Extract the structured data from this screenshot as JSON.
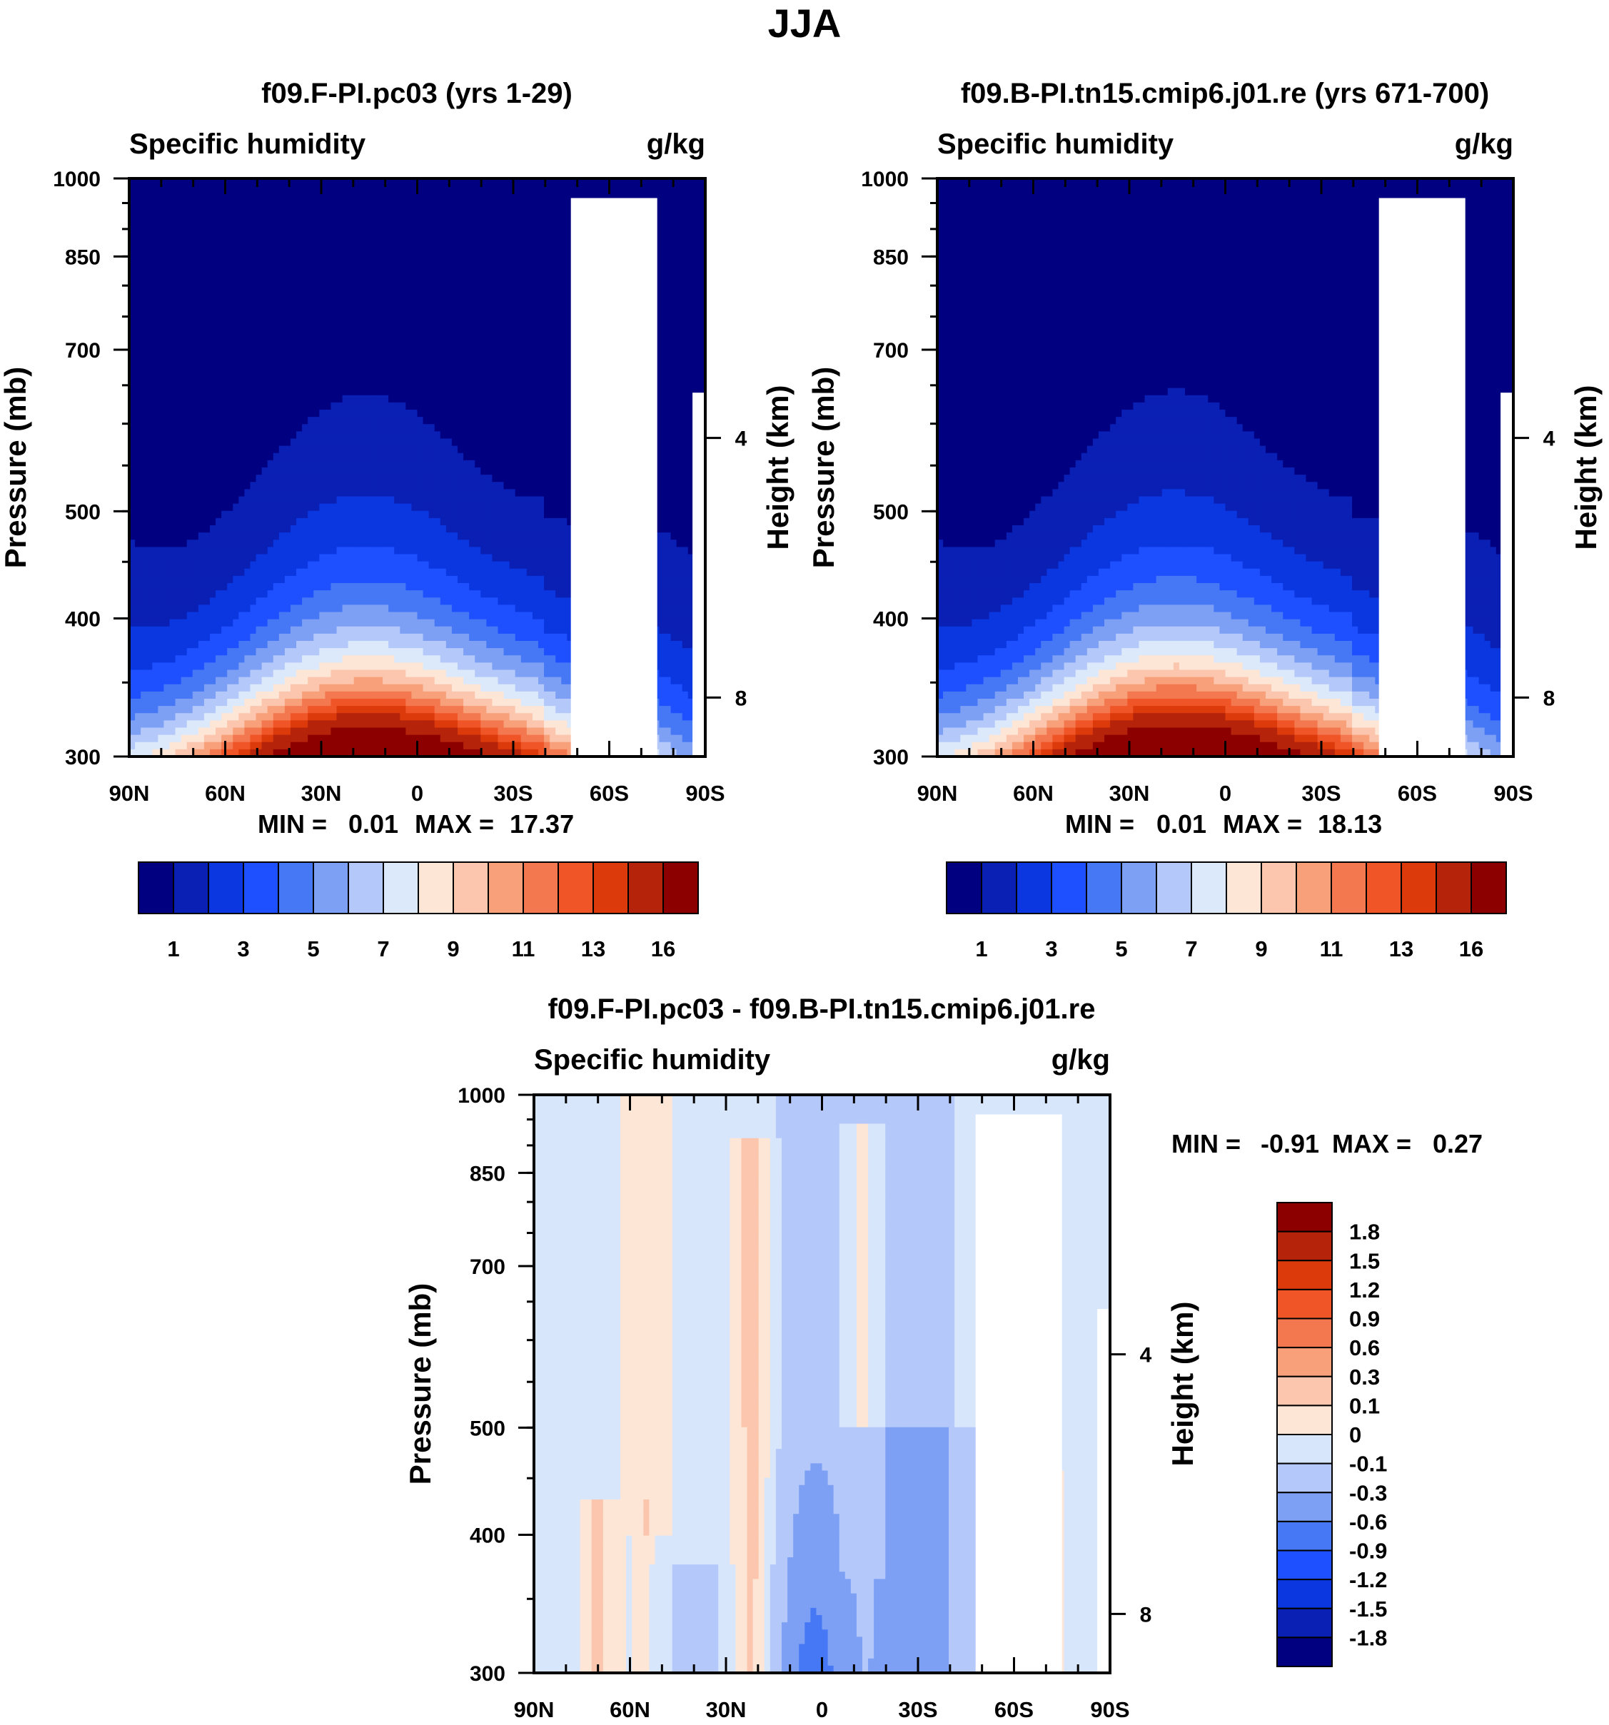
{
  "figure": {
    "title": "JJA"
  },
  "colors": {
    "absolute": [
      "#000080",
      "#0a1fb3",
      "#0a37e0",
      "#1e50ff",
      "#4678f5",
      "#7da0f5",
      "#b4c8fa",
      "#dce9fb",
      "#fde6d6",
      "#fbc6ad",
      "#f7a07a",
      "#f37850",
      "#f05528",
      "#dc3a0a",
      "#b4230a",
      "#8c0000"
    ],
    "diff": [
      "#000080",
      "#0a1fb3",
      "#0a37e0",
      "#1e50ff",
      "#4678f5",
      "#7da0f5",
      "#b4c8fa",
      "#d8e6fb",
      "#fde6d6",
      "#fbc6ad",
      "#f7a07a",
      "#f37850",
      "#f05528",
      "#dc3a0a",
      "#b4230a",
      "#8c0000"
    ]
  },
  "chart_data": [
    {
      "id": "panel1",
      "type": "contour",
      "title": "f09.F-PI.pc03 (yrs 1-29)",
      "left_label": "Specific humidity",
      "right_label": "g/kg",
      "ylabel": "Pressure (mb)",
      "ylabel_right": "Height (km)",
      "x_ticks": [
        "90N",
        "60N",
        "30N",
        "0",
        "30S",
        "60S",
        "90S"
      ],
      "y_ticks": [
        "300",
        "400",
        "500",
        "700",
        "850",
        "1000"
      ],
      "y_ticks_right": [
        "8",
        "4"
      ],
      "min_label": "MIN =",
      "min_value": "0.01",
      "max_label": "MAX =",
      "max_value": "17.37",
      "levels": [
        1,
        2,
        3,
        4,
        5,
        6,
        7,
        8,
        9,
        10,
        11,
        12,
        13,
        14,
        16
      ],
      "colorbar_labels": [
        "1",
        "3",
        "5",
        "7",
        "9",
        "11",
        "13",
        "16"
      ],
      "xlim": [
        90,
        -90
      ],
      "ylim": [
        1000,
        300
      ],
      "max_level": 16.5
    },
    {
      "id": "panel2",
      "type": "contour",
      "title": "f09.B-PI.tn15.cmip6.j01.re (yrs 671-700)",
      "left_label": "Specific humidity",
      "right_label": "g/kg",
      "ylabel": "Pressure (mb)",
      "ylabel_right": "Height (km)",
      "x_ticks": [
        "90N",
        "60N",
        "30N",
        "0",
        "30S",
        "60S",
        "90S"
      ],
      "y_ticks": [
        "300",
        "400",
        "500",
        "700",
        "850",
        "1000"
      ],
      "y_ticks_right": [
        "8",
        "4"
      ],
      "min_label": "MIN =",
      "min_value": "0.01",
      "max_label": "MAX =",
      "max_value": "18.13",
      "levels": [
        1,
        2,
        3,
        4,
        5,
        6,
        7,
        8,
        9,
        10,
        11,
        12,
        13,
        14,
        16
      ],
      "colorbar_labels": [
        "1",
        "3",
        "5",
        "7",
        "9",
        "11",
        "13",
        "16"
      ],
      "xlim": [
        90,
        -90
      ],
      "ylim": [
        1000,
        300
      ],
      "max_level": 17.2
    },
    {
      "id": "panel3",
      "type": "contour",
      "title": "f09.F-PI.pc03 - f09.B-PI.tn15.cmip6.j01.re",
      "left_label": "Specific humidity",
      "right_label": "g/kg",
      "ylabel": "Pressure (mb)",
      "ylabel_right": "Height (km)",
      "x_ticks": [
        "90N",
        "60N",
        "30N",
        "0",
        "30S",
        "60S",
        "90S"
      ],
      "y_ticks": [
        "300",
        "400",
        "500",
        "700",
        "850",
        "1000"
      ],
      "y_ticks_right": [
        "8",
        "4"
      ],
      "min_label": "MIN =",
      "min_value": "-0.91",
      "max_label": "MAX =",
      "max_value": "0.27",
      "levels": [
        -1.8,
        -1.5,
        -1.2,
        -0.9,
        -0.6,
        -0.3,
        -0.1,
        0,
        0.1,
        0.3,
        0.6,
        0.9,
        1.2,
        1.5,
        1.8
      ],
      "colorbar_labels": [
        "1.8",
        "1.5",
        "1.2",
        "0.9",
        "0.6",
        "0.3",
        "0.1",
        "0",
        "-0.1",
        "-0.3",
        "-0.6",
        "-0.9",
        "-1.2",
        "-1.5",
        "-1.8"
      ],
      "xlim": [
        90,
        -90
      ],
      "ylim": [
        1000,
        300
      ]
    }
  ]
}
